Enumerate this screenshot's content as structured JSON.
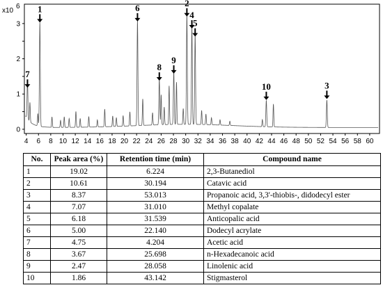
{
  "chart_data": {
    "type": "line",
    "y_multiplier_label": "x10",
    "y_multiplier_exp": "6",
    "x_ticks": [
      4,
      6,
      8,
      10,
      12,
      14,
      16,
      18,
      20,
      22,
      24,
      26,
      28,
      30,
      32,
      34,
      36,
      38,
      40,
      42,
      44,
      46,
      48,
      50,
      52,
      54,
      56,
      58,
      60
    ],
    "y_ticks": [
      0,
      0.5,
      1,
      1.5,
      2,
      2.5,
      3
    ],
    "xlim": [
      3.7,
      61.6
    ],
    "ylim": [
      -0.12,
      3.55
    ],
    "grid": false,
    "peaks": [
      {
        "label": "1",
        "x": 6.224,
        "y": 2.95
      },
      {
        "label": "2",
        "x": 30.194,
        "y": 3.12
      },
      {
        "label": "3",
        "x": 53.013,
        "y": 0.78
      },
      {
        "label": "4",
        "x": 31.01,
        "y": 2.78
      },
      {
        "label": "5",
        "x": 31.539,
        "y": 2.55
      },
      {
        "label": "6",
        "x": 22.14,
        "y": 2.98
      },
      {
        "label": "7",
        "x": 4.204,
        "y": 1.1
      },
      {
        "label": "8",
        "x": 25.698,
        "y": 1.3
      },
      {
        "label": "9",
        "x": 28.058,
        "y": 1.5
      },
      {
        "label": "10",
        "x": 43.142,
        "y": 0.75
      }
    ],
    "minor_peaks": [
      {
        "x": 4.6,
        "y": 0.55
      },
      {
        "x": 5.9,
        "y": 0.35
      },
      {
        "x": 8.2,
        "y": 0.3
      },
      {
        "x": 9.6,
        "y": 0.2
      },
      {
        "x": 10.2,
        "y": 0.3
      },
      {
        "x": 11.0,
        "y": 0.25
      },
      {
        "x": 12.1,
        "y": 0.45
      },
      {
        "x": 12.8,
        "y": 0.25
      },
      {
        "x": 14.2,
        "y": 0.3
      },
      {
        "x": 15.6,
        "y": 0.2
      },
      {
        "x": 16.8,
        "y": 0.5
      },
      {
        "x": 18.1,
        "y": 0.3
      },
      {
        "x": 18.7,
        "y": 0.25
      },
      {
        "x": 19.8,
        "y": 0.3
      },
      {
        "x": 20.9,
        "y": 0.4
      },
      {
        "x": 23.0,
        "y": 0.75
      },
      {
        "x": 24.6,
        "y": 0.35
      },
      {
        "x": 26.0,
        "y": 0.85
      },
      {
        "x": 26.5,
        "y": 0.5
      },
      {
        "x": 27.3,
        "y": 1.1
      },
      {
        "x": 28.5,
        "y": 1.2
      },
      {
        "x": 29.6,
        "y": 0.45
      },
      {
        "x": 32.6,
        "y": 0.4
      },
      {
        "x": 33.3,
        "y": 0.3
      },
      {
        "x": 34.2,
        "y": 0.2
      },
      {
        "x": 35.6,
        "y": 0.15
      },
      {
        "x": 37.2,
        "y": 0.12
      },
      {
        "x": 42.5,
        "y": 0.2
      },
      {
        "x": 44.3,
        "y": 0.65
      }
    ]
  },
  "table": {
    "headers": [
      "No.",
      "Peak area (%)",
      "Retention time (min)",
      "Compound name"
    ],
    "rows": [
      [
        "1",
        "19.02",
        "6.224",
        "2,3-Butanediol"
      ],
      [
        "2",
        "10.61",
        "30.194",
        "Catavic acid"
      ],
      [
        "3",
        "8.37",
        "53.013",
        "Propanoic acid, 3,3'-thiobis-, didodecyl ester"
      ],
      [
        "4",
        "7.07",
        "31.010",
        "Methyl copalate"
      ],
      [
        "5",
        "6.18",
        "31.539",
        "Anticopalic acid"
      ],
      [
        "6",
        "5.00",
        "22.140",
        "Dodecyl acrylate"
      ],
      [
        "7",
        "4.75",
        "4.204",
        "Acetic acid"
      ],
      [
        "8",
        "3.67",
        "25.698",
        "n-Hexadecanoic acid"
      ],
      [
        "9",
        "2.47",
        "28.058",
        "Linolenic acid"
      ],
      [
        "10",
        "1.86",
        "43.142",
        "Stigmasterol"
      ]
    ]
  }
}
